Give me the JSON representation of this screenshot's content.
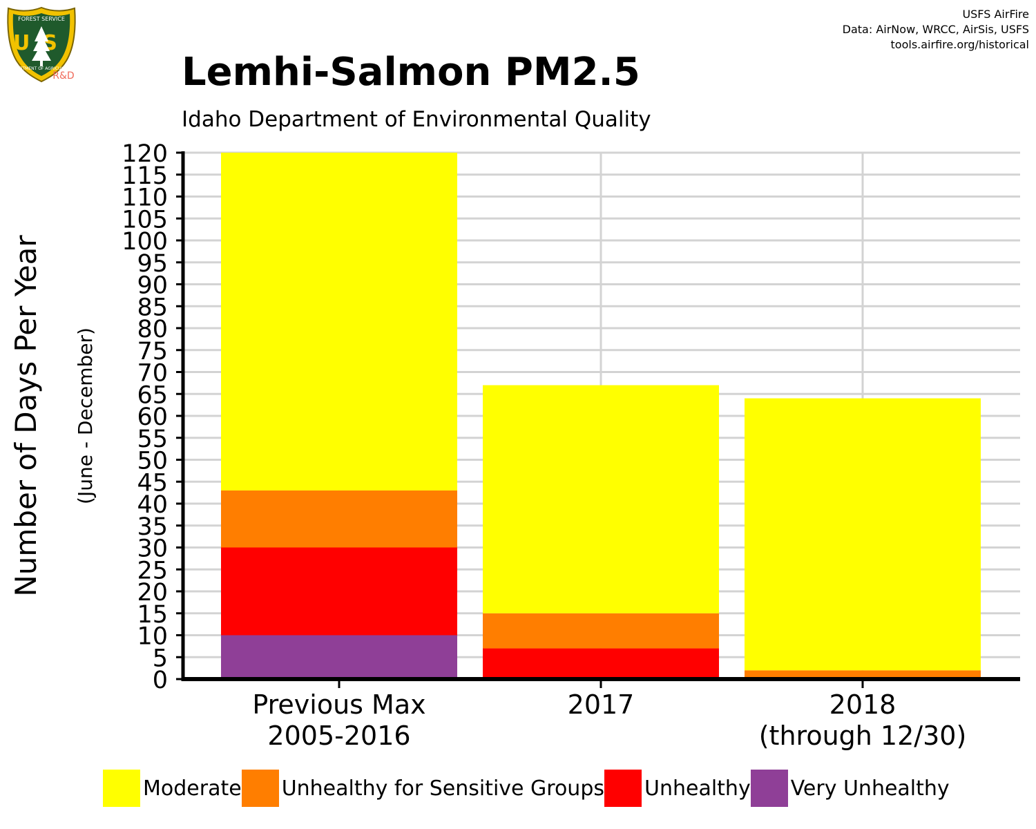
{
  "header": {
    "credit_lines": [
      "USFS AirFire",
      "Data: AirNow, WRCC, AirSis, USFS",
      "tools.airfire.org/historical"
    ],
    "logo": {
      "icon": "usfs-shield-icon",
      "letters": "US",
      "top_text": "FOREST SERVICE",
      "bottom_text": "DEPARTMENT OF AGRICULTURE",
      "tag": "R&D"
    }
  },
  "colors": {
    "Moderate": "#ffff00",
    "Unhealthy for Sensitive Groups": "#ff7e00",
    "Unhealthy": "#ff0000",
    "Very Unhealthy": "#8f3f97",
    "grid": "#d3d3d3",
    "axis": "#000000"
  },
  "chart_data": {
    "type": "bar",
    "stacked": true,
    "title": "Lemhi-Salmon PM2.5",
    "subtitle": "Idaho Department of Environmental Quality",
    "ylabel": "Number of Days Per Year",
    "ylabel_sub": "(June - December)",
    "xlabel": "",
    "ylim": [
      0,
      120
    ],
    "yticks": [
      0,
      5,
      10,
      15,
      20,
      25,
      30,
      35,
      40,
      45,
      50,
      55,
      60,
      65,
      70,
      75,
      80,
      85,
      90,
      95,
      100,
      105,
      110,
      115,
      120
    ],
    "grid": true,
    "legend_position": "bottom",
    "categories": [
      [
        "Previous Max",
        "2005-2016"
      ],
      [
        "2017"
      ],
      [
        "2018",
        "(through 12/30)"
      ]
    ],
    "series": [
      {
        "name": "Very Unhealthy",
        "values": [
          10,
          0,
          0
        ]
      },
      {
        "name": "Unhealthy",
        "values": [
          20,
          7,
          0
        ]
      },
      {
        "name": "Unhealthy for Sensitive Groups",
        "values": [
          13,
          8,
          2
        ]
      },
      {
        "name": "Moderate",
        "values": [
          77,
          52,
          62
        ]
      }
    ],
    "legend": [
      "Moderate",
      "Unhealthy for Sensitive Groups",
      "Unhealthy",
      "Very Unhealthy"
    ]
  }
}
